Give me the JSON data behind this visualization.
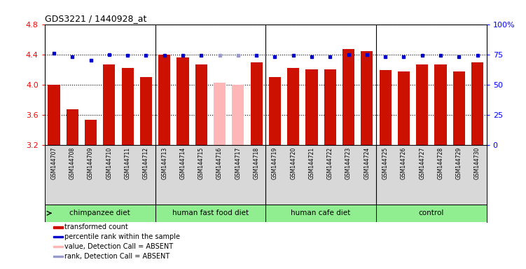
{
  "title": "GDS3221 / 1440928_at",
  "samples": [
    "GSM144707",
    "GSM144708",
    "GSM144709",
    "GSM144710",
    "GSM144711",
    "GSM144712",
    "GSM144713",
    "GSM144714",
    "GSM144715",
    "GSM144716",
    "GSM144717",
    "GSM144718",
    "GSM144719",
    "GSM144720",
    "GSM144721",
    "GSM144722",
    "GSM144723",
    "GSM144724",
    "GSM144725",
    "GSM144726",
    "GSM144727",
    "GSM144728",
    "GSM144729",
    "GSM144730"
  ],
  "bar_values": [
    4.0,
    3.68,
    3.54,
    4.27,
    4.22,
    4.1,
    4.4,
    4.36,
    4.27,
    4.03,
    4.0,
    4.3,
    4.1,
    4.22,
    4.2,
    4.2,
    4.47,
    4.44,
    4.19,
    4.18,
    4.27,
    4.27,
    4.18,
    4.3
  ],
  "bar_absent": [
    false,
    false,
    false,
    false,
    false,
    false,
    false,
    false,
    false,
    true,
    true,
    false,
    false,
    false,
    false,
    false,
    false,
    false,
    false,
    false,
    false,
    false,
    false,
    false
  ],
  "rank_values": [
    76,
    73,
    70,
    75,
    74,
    74,
    74,
    74,
    74,
    74,
    74,
    74,
    73,
    74,
    73,
    73,
    75,
    75,
    73,
    73,
    74,
    74,
    73,
    74
  ],
  "rank_absent": [
    false,
    false,
    false,
    false,
    false,
    false,
    false,
    false,
    false,
    true,
    true,
    false,
    false,
    false,
    false,
    false,
    false,
    false,
    false,
    false,
    false,
    false,
    false,
    false
  ],
  "groups": [
    {
      "label": "chimpanzee diet",
      "start": 0,
      "end": 6
    },
    {
      "label": "human fast food diet",
      "start": 6,
      "end": 12
    },
    {
      "label": "human cafe diet",
      "start": 12,
      "end": 18
    },
    {
      "label": "control",
      "start": 18,
      "end": 24
    }
  ],
  "ylim_left": [
    3.2,
    4.8
  ],
  "ylim_right": [
    0,
    100
  ],
  "bar_color": "#cc1100",
  "bar_absent_color": "#ffb6b6",
  "rank_color": "#0000cc",
  "rank_absent_color": "#9999cc",
  "xtick_bg": "#d8d8d8",
  "group_color": "#90ee90",
  "plot_bg": "#ffffff",
  "yticks_left": [
    3.2,
    3.6,
    4.0,
    4.4,
    4.8
  ],
  "yticks_right": [
    0,
    25,
    50,
    75,
    100
  ],
  "legend_items": [
    {
      "color": "#cc1100",
      "label": "transformed count"
    },
    {
      "color": "#0000cc",
      "label": "percentile rank within the sample"
    },
    {
      "color": "#ffb6b6",
      "label": "value, Detection Call = ABSENT"
    },
    {
      "color": "#9999cc",
      "label": "rank, Detection Call = ABSENT"
    }
  ]
}
